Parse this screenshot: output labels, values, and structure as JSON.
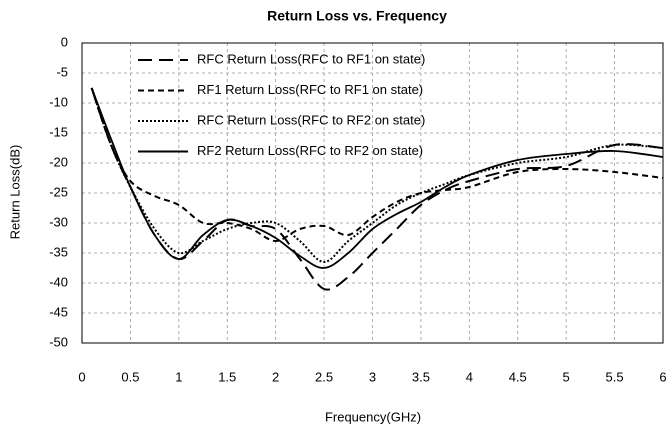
{
  "chart_data": {
    "type": "line",
    "title": "Return Loss vs. Frequency",
    "x_label": "Frequency(GHz)",
    "y_label": "Return Loss(dB)",
    "x": [
      0.1,
      0.3,
      0.5,
      0.75,
      1.0,
      1.25,
      1.5,
      1.75,
      2.0,
      2.25,
      2.5,
      2.75,
      3.0,
      3.25,
      3.5,
      3.75,
      4.0,
      4.5,
      5.0,
      5.5,
      6.0
    ],
    "series": [
      {
        "name": "RFC Return Loss(RFC to RF1 on state)",
        "color": "#000000",
        "dash": "14,7",
        "values": [
          -7.5,
          -17,
          -24,
          -32,
          -36,
          -33,
          -29.5,
          -30.5,
          -31,
          -36,
          -41,
          -39,
          -35,
          -31,
          -27,
          -24.5,
          -23,
          -21,
          -20.5,
          -17,
          -17.5
        ]
      },
      {
        "name": "RF1 Return Loss(RFC to RF1 on state)",
        "color": "#000000",
        "dash": "6,4",
        "values": [
          -7.5,
          -17,
          -23,
          -25.5,
          -27,
          -30,
          -30,
          -31,
          -33,
          -31,
          -30.5,
          -32,
          -29,
          -26.5,
          -25,
          -24.5,
          -24,
          -21.5,
          -21,
          -21.5,
          -22.5
        ]
      },
      {
        "name": "RFC Return Loss(RFC to RF2 on state)",
        "color": "#000000",
        "dash": "2,2",
        "values": [
          -7.5,
          -17,
          -24,
          -31,
          -35,
          -33,
          -31,
          -30,
          -30,
          -33,
          -36.5,
          -33,
          -30,
          -27,
          -25,
          -23.5,
          -22,
          -20,
          -19,
          -17,
          -17.5
        ]
      },
      {
        "name": "RF2 Return Loss(RFC to RF2 on state)",
        "color": "#000000",
        "dash": "none",
        "values": [
          -7.5,
          -16,
          -24,
          -32,
          -36,
          -32,
          -29.5,
          -30.5,
          -32.5,
          -35.5,
          -37.5,
          -35,
          -31,
          -28.5,
          -26.5,
          -24,
          -22,
          -19.5,
          -18.5,
          -18,
          -19
        ]
      }
    ],
    "xlim": [
      0,
      6
    ],
    "xticks": [
      0,
      0.5,
      1,
      1.5,
      2,
      2.5,
      3,
      3.5,
      4,
      4.5,
      5,
      5.5,
      6
    ],
    "ylim": [
      -50,
      0
    ],
    "yticks": [
      0,
      -5,
      -10,
      -15,
      -20,
      -25,
      -30,
      -35,
      -40,
      -45,
      -50
    ],
    "grid": true,
    "legend": "upper left"
  }
}
